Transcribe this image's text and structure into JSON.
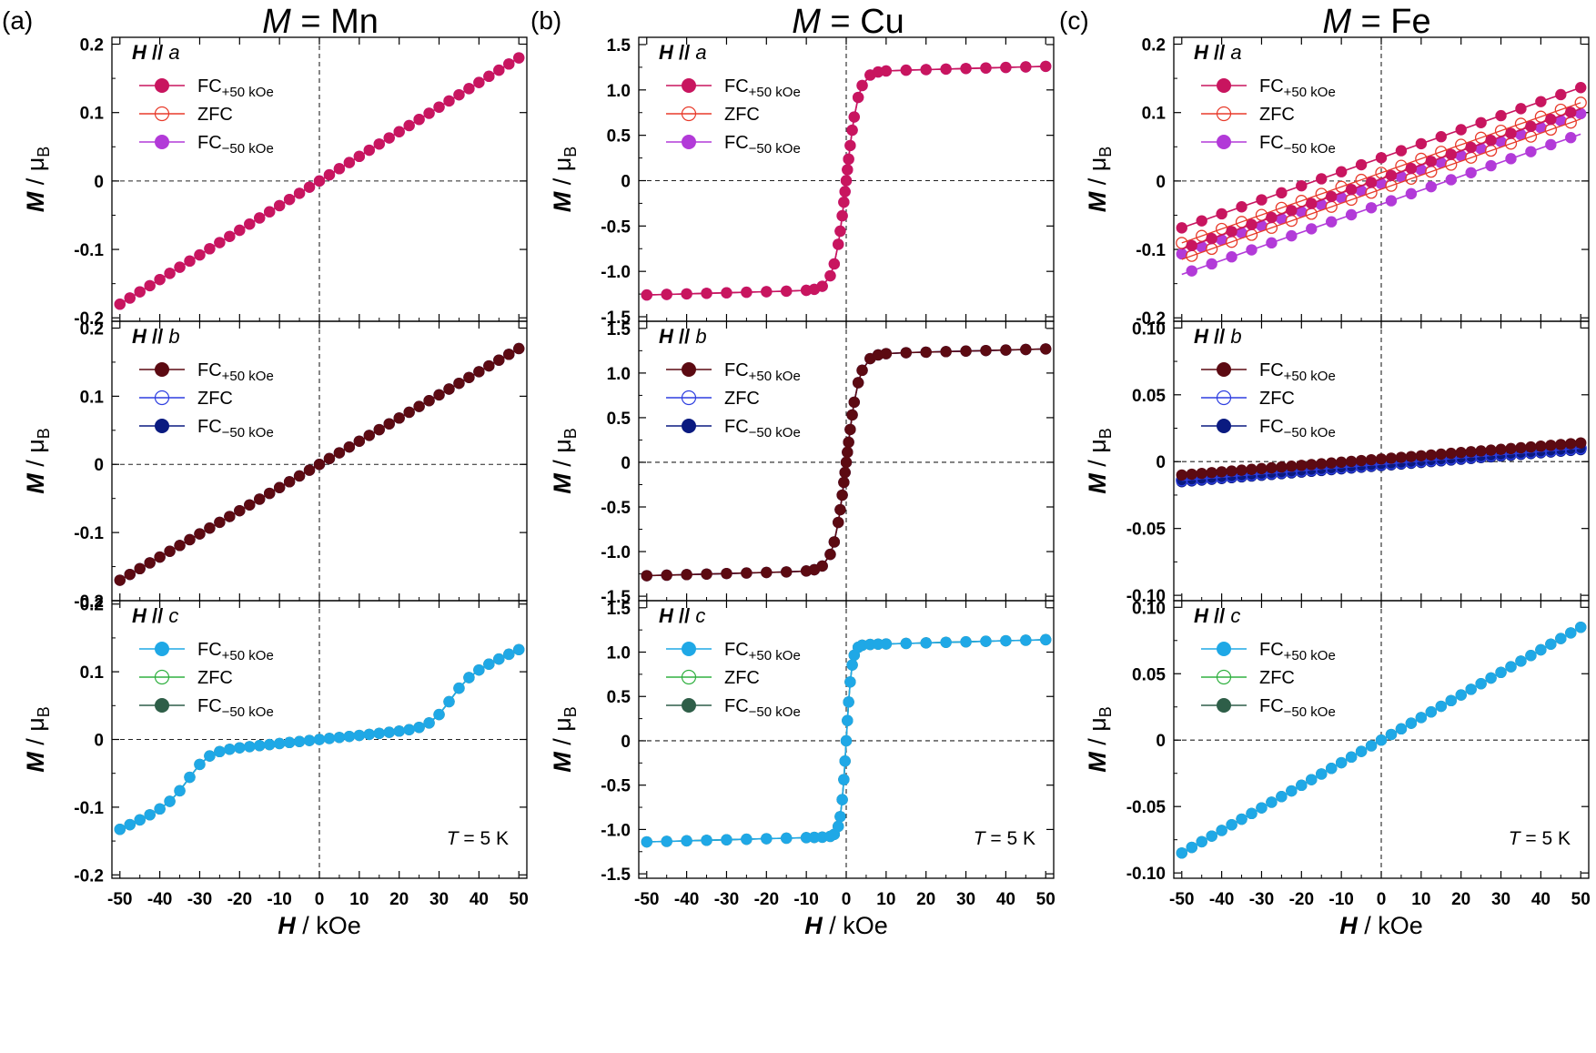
{
  "figure": {
    "panel_letters": [
      "(a)",
      "(b)",
      "(c)"
    ],
    "column_titles": [
      {
        "symbol": "M",
        "eq": " = ",
        "element": "Mn"
      },
      {
        "symbol": "M",
        "eq": " = ",
        "element": "Cu"
      },
      {
        "symbol": "M",
        "eq": " = ",
        "element": "Fe"
      }
    ],
    "ylabel": {
      "symbol": "M",
      "unit": " / μ",
      "sub": "B"
    },
    "xlabel": {
      "symbol": "H",
      "unit": " / kOe"
    },
    "temperature": {
      "symbol": "T",
      "text": " = 5 K"
    },
    "legend": {
      "field_symbol": "H",
      "parallel": " // ",
      "fc_plus": {
        "main": "FC",
        "sub": "+50 kOe"
      },
      "zfc": "ZFC",
      "fc_minus": {
        "main": "FC",
        "sub": "−50 kOe"
      }
    }
  },
  "chart_data": [
    {
      "id": "a-a",
      "type": "scatter",
      "column": 0,
      "row": 0,
      "compound": "Mn",
      "field_axis": "a",
      "xlim": [
        -52,
        52
      ],
      "ylim": [
        -0.205,
        0.21
      ],
      "yticks": [
        -0.2,
        -0.1,
        0,
        0.1,
        0.2
      ],
      "ytick_labels": [
        "-0.2",
        "-0.1",
        "0",
        "0.1",
        "0.2"
      ],
      "xticks": [
        -50,
        -40,
        -30,
        -20,
        -10,
        0,
        10,
        20,
        30,
        40,
        50
      ],
      "xtick_labels": [
        "-50",
        "-40",
        "-30",
        "-20",
        "-10",
        "0",
        "10",
        "20",
        "30",
        "40",
        "50"
      ],
      "show_xlabels": false,
      "curve": "linear",
      "params": {
        "slope": 0.0036,
        "offset": 0
      },
      "colors": {
        "fc_plus": "#c8155f",
        "zfc": "#e83a2a",
        "fc_minus": "#b23ad8"
      },
      "series": [
        {
          "name": "FC+50 kOe",
          "style": "filled"
        },
        {
          "name": "ZFC",
          "style": "open"
        },
        {
          "name": "FC−50 kOe",
          "style": "filled"
        }
      ]
    },
    {
      "id": "a-b",
      "type": "scatter",
      "column": 0,
      "row": 1,
      "compound": "Mn",
      "field_axis": "b",
      "xlim": [
        -52,
        52
      ],
      "ylim": [
        -0.2,
        0.21
      ],
      "yticks": [
        -0.2,
        -0.1,
        0,
        0.1,
        0.2
      ],
      "ytick_labels": [
        "-0.2",
        "-0.1",
        "0",
        "0.1",
        "0.2"
      ],
      "xticks": [
        -50,
        -40,
        -30,
        -20,
        -10,
        0,
        10,
        20,
        30,
        40,
        50
      ],
      "xtick_labels": [
        "-50",
        "-40",
        "-30",
        "-20",
        "-10",
        "0",
        "10",
        "20",
        "30",
        "40",
        "50"
      ],
      "show_xlabels": false,
      "curve": "linear",
      "params": {
        "slope": 0.0034,
        "offset": 0
      },
      "colors": {
        "fc_plus": "#5c0a12",
        "zfc": "#2e3fe0",
        "fc_minus": "#0a1a80"
      },
      "series": [
        {
          "name": "FC+50 kOe",
          "style": "filled"
        },
        {
          "name": "ZFC",
          "style": "open"
        },
        {
          "name": "FC−50 kOe",
          "style": "filled"
        }
      ]
    },
    {
      "id": "a-c",
      "type": "scatter",
      "column": 0,
      "row": 2,
      "compound": "Mn",
      "field_axis": "c",
      "xlim": [
        -52,
        52
      ],
      "ylim": [
        -0.205,
        0.205
      ],
      "yticks": [
        -0.2,
        -0.1,
        0,
        0.1,
        0.2
      ],
      "ytick_labels": [
        "-0.2",
        "-0.1",
        "0",
        "0.1",
        "0.2"
      ],
      "xticks": [
        -50,
        -40,
        -30,
        -20,
        -10,
        0,
        10,
        20,
        30,
        40,
        50
      ],
      "xtick_labels": [
        "-50",
        "-40",
        "-30",
        "-20",
        "-10",
        "0",
        "10",
        "20",
        "30",
        "40",
        "50"
      ],
      "show_xlabels": true,
      "curve": "spinflop",
      "params": {
        "slope": 0.0006,
        "step": 0.065,
        "center": 32,
        "width": 2.5,
        "slope2": 0.0021
      },
      "colors": {
        "fc_plus": "#1fa8e6",
        "zfc": "#30b040",
        "fc_minus": "#2e5e48"
      },
      "series": [
        {
          "name": "FC+50 kOe",
          "style": "filled"
        },
        {
          "name": "ZFC",
          "style": "open"
        },
        {
          "name": "FC−50 kOe",
          "style": "filled"
        }
      ],
      "annotation": "T = 5 K"
    },
    {
      "id": "b-a",
      "type": "scatter",
      "column": 1,
      "row": 0,
      "compound": "Cu",
      "field_axis": "a",
      "xlim": [
        -52,
        52
      ],
      "ylim": [
        -1.55,
        1.58
      ],
      "yticks": [
        -1.5,
        -1,
        -0.5,
        0,
        0.5,
        1,
        1.5
      ],
      "ytick_labels": [
        "-1.5",
        "-1.0",
        "-0.5",
        "0",
        "0.5",
        "1.0",
        "1.5"
      ],
      "xticks": [
        -50,
        -40,
        -30,
        -20,
        -10,
        0,
        10,
        20,
        30,
        40,
        50
      ],
      "xtick_labels": [
        "-50",
        "-40",
        "-30",
        "-20",
        "-10",
        "0",
        "10",
        "20",
        "30",
        "40",
        "50"
      ],
      "show_xlabels": false,
      "curve": "ferro",
      "params": {
        "ms": 1.2,
        "k": 3.0
      },
      "colors": {
        "fc_plus": "#c8155f",
        "zfc": "#e83a2a",
        "fc_minus": "#b23ad8"
      },
      "series": [
        {
          "name": "FC+50 kOe",
          "style": "filled"
        },
        {
          "name": "ZFC",
          "style": "open"
        },
        {
          "name": "FC−50 kOe",
          "style": "filled"
        }
      ]
    },
    {
      "id": "b-b",
      "type": "scatter",
      "column": 1,
      "row": 1,
      "compound": "Cu",
      "field_axis": "b",
      "xlim": [
        -52,
        52
      ],
      "ylim": [
        -1.55,
        1.58
      ],
      "yticks": [
        -1.5,
        -1,
        -0.5,
        0,
        0.5,
        1,
        1.5
      ],
      "ytick_labels": [
        "-1.5",
        "-1.0",
        "-0.5",
        "0",
        "0.5",
        "1.0",
        "1.5"
      ],
      "xticks": [
        -50,
        -40,
        -30,
        -20,
        -10,
        0,
        10,
        20,
        30,
        40,
        50
      ],
      "xtick_labels": [
        "-50",
        "-40",
        "-30",
        "-20",
        "-10",
        "0",
        "10",
        "20",
        "30",
        "40",
        "50"
      ],
      "show_xlabels": false,
      "curve": "ferro",
      "params": {
        "ms": 1.21,
        "k": 3.2
      },
      "colors": {
        "fc_plus": "#5c0a12",
        "zfc": "#2e3fe0",
        "fc_minus": "#0a1a80"
      },
      "series": [
        {
          "name": "FC+50 kOe",
          "style": "filled"
        },
        {
          "name": "ZFC",
          "style": "open"
        },
        {
          "name": "FC−50 kOe",
          "style": "filled"
        }
      ]
    },
    {
      "id": "b-c",
      "type": "scatter",
      "column": 1,
      "row": 2,
      "compound": "Cu",
      "field_axis": "c",
      "xlim": [
        -52,
        52
      ],
      "ylim": [
        -1.55,
        1.58
      ],
      "yticks": [
        -1.5,
        -1,
        -0.5,
        0,
        0.5,
        1,
        1.5
      ],
      "ytick_labels": [
        "-1.5",
        "-1.0",
        "-0.5",
        "0",
        "0.5",
        "1.0",
        "1.5"
      ],
      "xticks": [
        -50,
        -40,
        -30,
        -20,
        -10,
        0,
        10,
        20,
        30,
        40,
        50
      ],
      "xtick_labels": [
        "-50",
        "-40",
        "-30",
        "-20",
        "-10",
        "0",
        "10",
        "20",
        "30",
        "40",
        "50"
      ],
      "show_xlabels": true,
      "curve": "ferro",
      "params": {
        "ms": 1.08,
        "k": 1.4
      },
      "colors": {
        "fc_plus": "#1fa8e6",
        "zfc": "#30b040",
        "fc_minus": "#2e5e48"
      },
      "series": [
        {
          "name": "FC+50 kOe",
          "style": "filled"
        },
        {
          "name": "ZFC",
          "style": "open"
        },
        {
          "name": "FC−50 kOe",
          "style": "filled"
        }
      ],
      "annotation": "T = 5 K"
    },
    {
      "id": "c-a",
      "type": "scatter",
      "column": 2,
      "row": 0,
      "compound": "Fe",
      "field_axis": "a",
      "xlim": [
        -52,
        52
      ],
      "ylim": [
        -0.205,
        0.21
      ],
      "yticks": [
        -0.2,
        -0.1,
        0,
        0.1,
        0.2
      ],
      "ytick_labels": [
        "-0.2",
        "-0.1",
        "0",
        "0.1",
        "0.2"
      ],
      "xticks": [
        -50,
        -40,
        -30,
        -20,
        -10,
        0,
        10,
        20,
        30,
        40,
        50
      ],
      "xtick_labels": [
        "-50",
        "-40",
        "-30",
        "-20",
        "-10",
        "0",
        "10",
        "20",
        "30",
        "40",
        "50"
      ],
      "show_xlabels": false,
      "curve": "linear_offsets",
      "params": {
        "slope": 0.00205,
        "offsets": {
          "fc_plus": [
            0.034,
            0.003
          ],
          "zfc": [
            0.012,
            -0.012
          ],
          "fc_minus": [
            -0.004,
            -0.034
          ]
        }
      },
      "colors": {
        "fc_plus": "#c8155f",
        "zfc": "#e83a2a",
        "fc_minus": "#b23ad8"
      },
      "series": [
        {
          "name": "FC+50 kOe",
          "style": "filled"
        },
        {
          "name": "ZFC",
          "style": "open"
        },
        {
          "name": "FC−50 kOe",
          "style": "filled"
        }
      ]
    },
    {
      "id": "c-b",
      "type": "scatter",
      "column": 2,
      "row": 1,
      "compound": "Fe",
      "field_axis": "b",
      "xlim": [
        -52,
        52
      ],
      "ylim": [
        -0.104,
        0.105
      ],
      "yticks": [
        -0.1,
        -0.05,
        0,
        0.05,
        0.1
      ],
      "ytick_labels": [
        "-0.10",
        "-0.05",
        "0",
        "0.05",
        "0.10"
      ],
      "xticks": [
        -50,
        -40,
        -30,
        -20,
        -10,
        0,
        10,
        20,
        30,
        40,
        50
      ],
      "xtick_labels": [
        "-50",
        "-40",
        "-30",
        "-20",
        "-10",
        "0",
        "10",
        "20",
        "30",
        "40",
        "50"
      ],
      "show_xlabels": false,
      "curve": "linear_offsets",
      "params": {
        "slope": 0.00024,
        "offsets": {
          "fc_plus": [
            0.002,
            0.002
          ],
          "zfc": [
            -0.002,
            -0.002
          ],
          "fc_minus": [
            -0.003,
            -0.003
          ]
        }
      },
      "colors": {
        "fc_plus": "#5c0a12",
        "zfc": "#2e3fe0",
        "fc_minus": "#0a1a80"
      },
      "series": [
        {
          "name": "FC+50 kOe",
          "style": "filled"
        },
        {
          "name": "ZFC",
          "style": "open"
        },
        {
          "name": "FC−50 kOe",
          "style": "filled"
        }
      ]
    },
    {
      "id": "c-c",
      "type": "scatter",
      "column": 2,
      "row": 2,
      "compound": "Fe",
      "field_axis": "c",
      "xlim": [
        -52,
        52
      ],
      "ylim": [
        -0.104,
        0.105
      ],
      "yticks": [
        -0.1,
        -0.05,
        0,
        0.05,
        0.1
      ],
      "ytick_labels": [
        "-0.10",
        "-0.05",
        "0",
        "0.05",
        "0.10"
      ],
      "xticks": [
        -50,
        -40,
        -30,
        -20,
        -10,
        0,
        10,
        20,
        30,
        40,
        50
      ],
      "xtick_labels": [
        "-50",
        "-40",
        "-30",
        "-20",
        "-10",
        "0",
        "10",
        "20",
        "30",
        "40",
        "50"
      ],
      "show_xlabels": true,
      "curve": "linear",
      "params": {
        "slope": 0.0017,
        "offset": 0
      },
      "colors": {
        "fc_plus": "#1fa8e6",
        "zfc": "#30b040",
        "fc_minus": "#2e5e48"
      },
      "series": [
        {
          "name": "FC+50 kOe",
          "style": "filled"
        },
        {
          "name": "ZFC",
          "style": "open"
        },
        {
          "name": "FC−50 kOe",
          "style": "filled"
        }
      ],
      "annotation": "T = 5 K"
    }
  ]
}
